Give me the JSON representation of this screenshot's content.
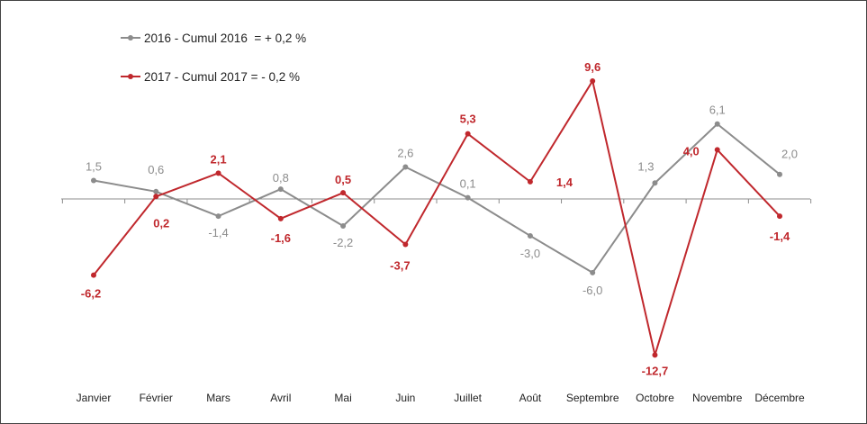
{
  "chart_data": {
    "type": "line",
    "categories": [
      "Janvier",
      "Février",
      "Mars",
      "Avril",
      "Mai",
      "Juin",
      "Juillet",
      "Août",
      "Septembre",
      "Octobre",
      "Novembre",
      "Décembre"
    ],
    "series": [
      {
        "name": "2016 - Cumul 2016  = + 0,2 %",
        "color": "#8c8c8c",
        "values": [
          1.5,
          0.6,
          -1.4,
          0.8,
          -2.2,
          2.6,
          0.1,
          -3.0,
          -6.0,
          1.3,
          6.1,
          2.0
        ],
        "labels": [
          "1,5",
          "0,6",
          "-1,4",
          "0,8",
          "-2,2",
          "2,6",
          "0,1",
          "-3,0",
          "-6,0",
          "1,3",
          "6,1",
          "2,0"
        ]
      },
      {
        "name": "2017 - Cumul 2017 = - 0,2 %",
        "color": "#c0282d",
        "values": [
          -6.2,
          0.2,
          2.1,
          -1.6,
          0.5,
          -3.7,
          5.3,
          1.4,
          9.6,
          -12.7,
          4.0,
          -1.4
        ],
        "labels": [
          "-6,2",
          "0,2",
          "2,1",
          "-1,6",
          "0,5",
          "-3,7",
          "5,3",
          "1,4",
          "9,6",
          "-12,7",
          "4,0",
          "-1,4"
        ]
      }
    ],
    "xlabel": "",
    "ylabel": "",
    "ylim": [
      -12.7,
      9.6
    ],
    "grid": false,
    "legend_position": "top-left"
  }
}
